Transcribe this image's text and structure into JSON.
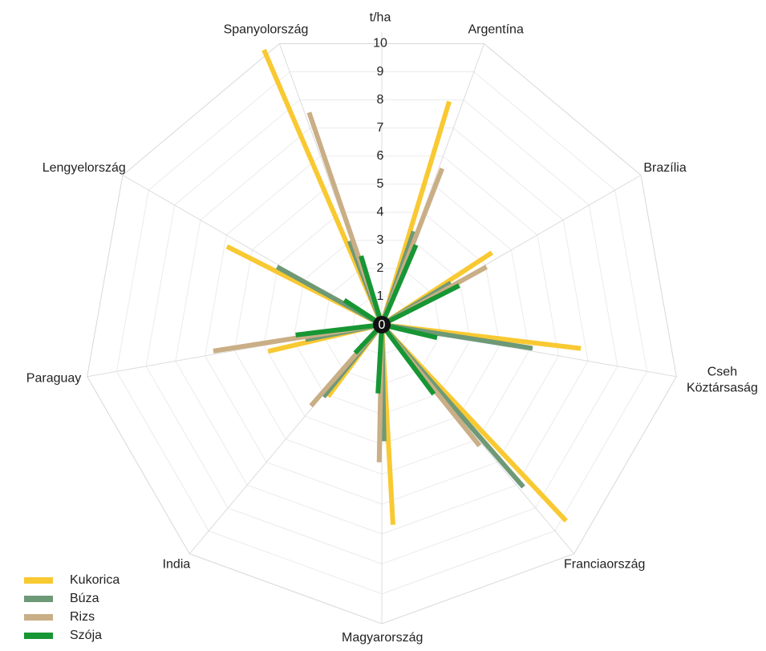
{
  "chart_data": {
    "type": "radial-bar",
    "axis_label": "t/ha",
    "categories": [
      "Argentína",
      "Brazília",
      "Cseh Köztársaság",
      "Franciaország",
      "Magyarország",
      "India",
      "Paraguay",
      "Lengyelország",
      "Spanyolország"
    ],
    "series": [
      {
        "name": "Kukorica",
        "color": "#f9c932",
        "values": [
          7.8,
          4.4,
          6.7,
          9.0,
          6.7,
          3.0,
          3.9,
          5.8,
          10.0
        ]
      },
      {
        "name": "Búza",
        "color": "#6e9977",
        "values": [
          3.3,
          2.7,
          5.1,
          7.2,
          3.9,
          3.1,
          2.6,
          4.0,
          3.0
        ]
      },
      {
        "name": "Rizs",
        "color": "#c9ae86",
        "values": [
          5.6,
          4.0,
          0,
          5.2,
          4.6,
          3.6,
          5.7,
          0,
          7.5
        ]
      },
      {
        "name": "Szója",
        "color": "#179634",
        "values": [
          2.9,
          2.9,
          1.9,
          2.9,
          2.3,
          1.3,
          2.9,
          1.5,
          2.4
        ]
      }
    ],
    "ylim": [
      0,
      10
    ],
    "yticks": [
      0,
      1,
      2,
      3,
      4,
      5,
      6,
      7,
      8,
      9,
      10
    ],
    "grid": true,
    "legend": "bottom-left"
  }
}
